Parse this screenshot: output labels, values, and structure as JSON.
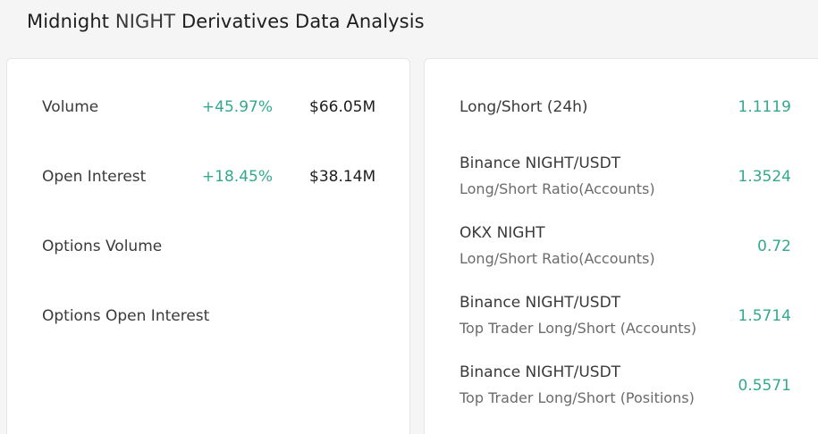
{
  "header": {
    "title_prefix": "Midnight ",
    "title_coin": "NIGHT",
    "title_suffix": " Derivatives Data Analysis"
  },
  "colors": {
    "positive": "#33a88f",
    "text": "#1e1e1e",
    "muted": "#6b6b6b",
    "background": "#f5f5f5",
    "card": "#ffffff"
  },
  "market": {
    "rows": [
      {
        "label": "Volume",
        "change": "+45.97%",
        "amount": "$66.05M"
      },
      {
        "label": "Open Interest",
        "change": "+18.45%",
        "amount": "$38.14M"
      },
      {
        "label": "Options Volume",
        "change": "",
        "amount": ""
      },
      {
        "label": "Options Open Interest",
        "change": "",
        "amount": ""
      }
    ]
  },
  "ratios": {
    "rows": [
      {
        "main": "Long/Short (24h)",
        "sub": "",
        "value": "1.1119"
      },
      {
        "main": "Binance NIGHT/USDT",
        "sub": "Long/Short Ratio(Accounts)",
        "value": "1.3524"
      },
      {
        "main": "OKX NIGHT",
        "sub": "Long/Short Ratio(Accounts)",
        "value": "0.72"
      },
      {
        "main": "Binance NIGHT/USDT",
        "sub": "Top Trader Long/Short (Accounts)",
        "value": "1.5714"
      },
      {
        "main": "Binance NIGHT/USDT",
        "sub": "Top Trader Long/Short (Positions)",
        "value": "0.5571"
      }
    ]
  }
}
